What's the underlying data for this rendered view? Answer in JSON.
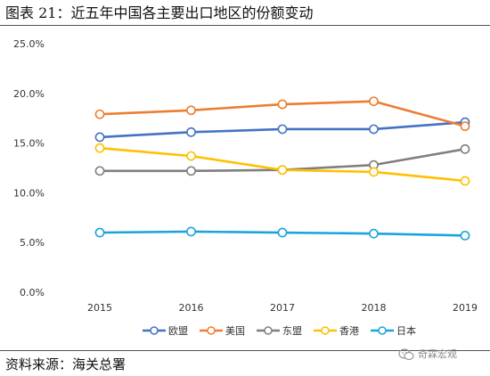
{
  "header": {
    "title": "图表 21：近五年中国各主要出口地区的份额变动"
  },
  "footer": {
    "source": "资料来源：海关总署",
    "watermark": "奇霖宏观",
    "watermark_icon": "wechat-icon"
  },
  "chart_data": {
    "type": "line",
    "title": "",
    "xlabel": "",
    "ylabel": "",
    "x": [
      "2015",
      "2016",
      "2017",
      "2018",
      "2019"
    ],
    "ylim": [
      0,
      25
    ],
    "yticks": [
      "0.0%",
      "5.0%",
      "10.0%",
      "15.0%",
      "20.0%",
      "25.0%"
    ],
    "grid": false,
    "legend_position": "bottom",
    "series": [
      {
        "name": "欧盟",
        "color": "#4472C4",
        "values": [
          15.6,
          16.1,
          16.4,
          16.4,
          17.1
        ]
      },
      {
        "name": "美国",
        "color": "#ED7D31",
        "values": [
          17.9,
          18.3,
          18.9,
          19.2,
          16.7
        ]
      },
      {
        "name": "东盟",
        "color": "#7F7F7F",
        "values": [
          12.2,
          12.2,
          12.3,
          12.8,
          14.4
        ]
      },
      {
        "name": "香港",
        "color": "#FFC000",
        "values": [
          14.5,
          13.7,
          12.3,
          12.1,
          11.2
        ]
      },
      {
        "name": "日本",
        "color": "#1BA4DC",
        "values": [
          6.0,
          6.1,
          6.0,
          5.9,
          5.7
        ]
      }
    ]
  }
}
